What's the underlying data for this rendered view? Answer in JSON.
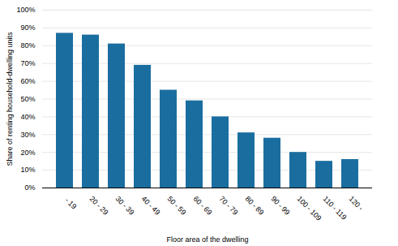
{
  "chart_data": {
    "type": "bar",
    "categories": [
      " - 19",
      "20 - 29",
      "30 - 39",
      "40 - 49",
      "50 - 59",
      "60 - 69",
      "70 - 79",
      "80 - 89",
      "90 - 99",
      "100 - 109",
      "110 - 119",
      "120 - "
    ],
    "values": [
      87,
      86,
      81,
      69,
      55,
      49,
      40,
      31,
      28,
      20,
      15,
      16
    ],
    "color": "#1a6e9f",
    "xlabel": "Floor area of the dwelling",
    "ylabel": "Share of renting household-dwelling units",
    "ylim": [
      0,
      100
    ],
    "yticks": [
      {
        "value": 0,
        "label": "0%"
      },
      {
        "value": 10,
        "label": "10%"
      },
      {
        "value": 20,
        "label": "20%"
      },
      {
        "value": 30,
        "label": "30%"
      },
      {
        "value": 40,
        "label": "40%"
      },
      {
        "value": 50,
        "label": "50%"
      },
      {
        "value": 60,
        "label": "60%"
      },
      {
        "value": 70,
        "label": "70%"
      },
      {
        "value": 80,
        "label": "80%"
      },
      {
        "value": 90,
        "label": "90%"
      },
      {
        "value": 100,
        "label": "100%"
      }
    ],
    "grid": true
  }
}
